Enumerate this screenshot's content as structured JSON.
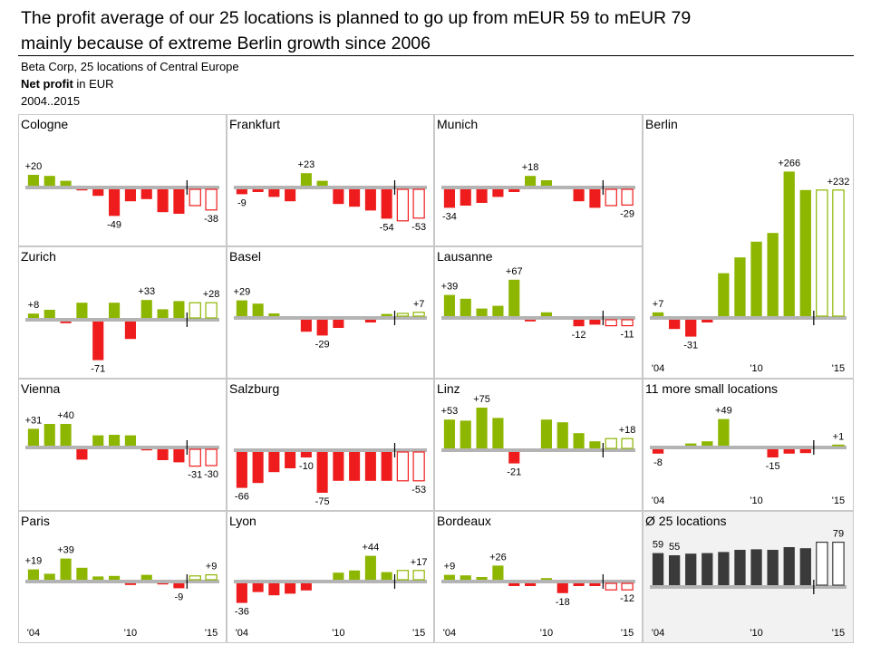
{
  "header": {
    "title_line1": "The profit average of our 25 locations is planned to go up from mEUR 59 to mEUR 79",
    "title_line2": "mainly because of extreme Berlin growth since 2006",
    "subtitle_org": "Beta Corp, 25 locations of Central Europe",
    "subtitle_measure_bold": "Net profit",
    "subtitle_measure_rest": " in EUR",
    "subtitle_period": "2004..2015"
  },
  "colors": {
    "positive": "#8db600",
    "negative": "#ee1c1c",
    "average": "#3a3a3a",
    "axis": "#b4b4b4",
    "panel_border": "#c8c8c8",
    "average_bg": "#f2f2f2"
  },
  "x_tick_labels": [
    "'04",
    "'10",
    "'15"
  ],
  "chart_data": [
    {
      "type": "bar",
      "title": "Cologne",
      "categories": [
        "2004",
        "2005",
        "2006",
        "2007",
        "2008",
        "2009",
        "2010",
        "2011",
        "2012",
        "2013",
        "2014",
        "2015"
      ],
      "values": [
        20,
        18,
        9,
        -2,
        -12,
        -49,
        -22,
        -18,
        -42,
        -45,
        -30,
        -38
      ],
      "planned_from_index": 10,
      "labels": [
        {
          "i": 0,
          "text": "+20"
        },
        {
          "i": 5,
          "text": "-49"
        },
        {
          "i": 11,
          "text": "-38"
        }
      ]
    },
    {
      "type": "bar",
      "title": "Frankfurt",
      "categories": [
        "2004",
        "2005",
        "2006",
        "2007",
        "2008",
        "2009",
        "2010",
        "2011",
        "2012",
        "2013",
        "2014",
        "2015"
      ],
      "values": [
        -9,
        -5,
        -14,
        -22,
        23,
        9,
        -27,
        -32,
        -39,
        -54,
        -58,
        -53
      ],
      "planned_from_index": 10,
      "labels": [
        {
          "i": 0,
          "text": "-9"
        },
        {
          "i": 4,
          "text": "+23"
        },
        {
          "i": 9,
          "text": "-54"
        },
        {
          "i": 11,
          "text": "-53"
        }
      ]
    },
    {
      "type": "bar",
      "title": "Munich",
      "categories": [
        "2004",
        "2005",
        "2006",
        "2007",
        "2008",
        "2009",
        "2010",
        "2011",
        "2012",
        "2013",
        "2014",
        "2015"
      ],
      "values": [
        -34,
        -30,
        -25,
        -14,
        -5,
        18,
        10,
        0,
        -22,
        -34,
        -30,
        -29
      ],
      "planned_from_index": 10,
      "labels": [
        {
          "i": 0,
          "text": "-34"
        },
        {
          "i": 5,
          "text": "+18"
        },
        {
          "i": 11,
          "text": "-29"
        }
      ]
    },
    {
      "type": "bar",
      "title": "Zurich",
      "categories": [
        "2004",
        "2005",
        "2006",
        "2007",
        "2008",
        "2009",
        "2010",
        "2011",
        "2012",
        "2013",
        "2014",
        "2015"
      ],
      "values": [
        8,
        15,
        -3,
        28,
        -71,
        28,
        -32,
        33,
        16,
        31,
        28,
        28
      ],
      "planned_from_index": 10,
      "labels": [
        {
          "i": 0,
          "text": "+8"
        },
        {
          "i": 4,
          "text": "-71"
        },
        {
          "i": 7,
          "text": "+33"
        },
        {
          "i": 11,
          "text": "+28"
        }
      ]
    },
    {
      "type": "bar",
      "title": "Basel",
      "categories": [
        "2004",
        "2005",
        "2006",
        "2007",
        "2008",
        "2009",
        "2010",
        "2011",
        "2012",
        "2013",
        "2014",
        "2015"
      ],
      "values": [
        29,
        23,
        5,
        0,
        -22,
        -29,
        -15,
        0,
        -5,
        4,
        5,
        7
      ],
      "planned_from_index": 10,
      "labels": [
        {
          "i": 0,
          "text": "+29"
        },
        {
          "i": 5,
          "text": "-29"
        },
        {
          "i": 11,
          "text": "+7"
        }
      ]
    },
    {
      "type": "bar",
      "title": "Lausanne",
      "categories": [
        "2004",
        "2005",
        "2006",
        "2007",
        "2008",
        "2009",
        "2010",
        "2011",
        "2012",
        "2013",
        "2014",
        "2015"
      ],
      "values": [
        39,
        32,
        14,
        19,
        67,
        -3,
        7,
        0,
        -12,
        -9,
        -11,
        -11
      ],
      "planned_from_index": 10,
      "labels": [
        {
          "i": 0,
          "text": "+39"
        },
        {
          "i": 4,
          "text": "+67"
        },
        {
          "i": 8,
          "text": "-12"
        },
        {
          "i": 11,
          "text": "-11"
        }
      ]
    },
    {
      "type": "bar",
      "title": "Berlin",
      "categories": [
        "2004",
        "2005",
        "2006",
        "2007",
        "2008",
        "2009",
        "2010",
        "2011",
        "2012",
        "2013",
        "2014",
        "2015"
      ],
      "values": [
        7,
        -17,
        -31,
        -5,
        79,
        108,
        137,
        153,
        266,
        232,
        232,
        232
      ],
      "planned_from_index": 10,
      "labels": [
        {
          "i": 0,
          "text": "+7"
        },
        {
          "i": 2,
          "text": "-31"
        },
        {
          "i": 8,
          "text": "+266"
        },
        {
          "i": 11,
          "text": "+232"
        }
      ]
    },
    {
      "type": "bar",
      "title": "Vienna",
      "categories": [
        "2004",
        "2005",
        "2006",
        "2007",
        "2008",
        "2009",
        "2010",
        "2011",
        "2012",
        "2013",
        "2014",
        "2015"
      ],
      "values": [
        31,
        40,
        40,
        -19,
        19,
        20,
        19,
        -2,
        -20,
        -24,
        -31,
        -30
      ],
      "planned_from_index": 10,
      "labels": [
        {
          "i": 0,
          "text": "+31"
        },
        {
          "i": 2,
          "text": "+40"
        },
        {
          "i": 10,
          "text": "-31"
        },
        {
          "i": 11,
          "text": "-30"
        }
      ]
    },
    {
      "type": "bar",
      "title": "Salzburg",
      "categories": [
        "2004",
        "2005",
        "2006",
        "2007",
        "2008",
        "2009",
        "2010",
        "2011",
        "2012",
        "2013",
        "2014",
        "2015"
      ],
      "values": [
        -66,
        -57,
        -37,
        -30,
        -10,
        -75,
        -53,
        -53,
        -53,
        -53,
        -53,
        -53
      ],
      "planned_from_index": 10,
      "labels": [
        {
          "i": 0,
          "text": "-66"
        },
        {
          "i": 4,
          "text": "-10"
        },
        {
          "i": 5,
          "text": "-75"
        },
        {
          "i": 11,
          "text": "-53"
        }
      ]
    },
    {
      "type": "bar",
      "title": "Linz",
      "categories": [
        "2004",
        "2005",
        "2006",
        "2007",
        "2008",
        "2009",
        "2010",
        "2011",
        "2012",
        "2013",
        "2014",
        "2015"
      ],
      "values": [
        53,
        51,
        75,
        56,
        -21,
        0,
        53,
        48,
        28,
        13,
        18,
        18
      ],
      "planned_from_index": 10,
      "labels": [
        {
          "i": 0,
          "text": "+53"
        },
        {
          "i": 2,
          "text": "+75"
        },
        {
          "i": 4,
          "text": "-21"
        },
        {
          "i": 11,
          "text": "+18"
        }
      ]
    },
    {
      "type": "bar",
      "title": "11 more small locations",
      "categories": [
        "2004",
        "2005",
        "2006",
        "2007",
        "2008",
        "2009",
        "2010",
        "2011",
        "2012",
        "2013",
        "2014",
        "2015"
      ],
      "values": [
        -8,
        0,
        4,
        8,
        49,
        0,
        0,
        -15,
        -8,
        -7,
        0,
        1
      ],
      "planned_from_index": 10,
      "labels": [
        {
          "i": 0,
          "text": "-8"
        },
        {
          "i": 4,
          "text": "+49"
        },
        {
          "i": 7,
          "text": "-15"
        },
        {
          "i": 11,
          "text": "+1"
        }
      ],
      "show_x_ticks": true
    },
    {
      "type": "bar",
      "title": "Paris",
      "categories": [
        "2004",
        "2005",
        "2006",
        "2007",
        "2008",
        "2009",
        "2010",
        "2011",
        "2012",
        "2013",
        "2014",
        "2015"
      ],
      "values": [
        19,
        11,
        39,
        22,
        6,
        7,
        -3,
        9,
        -2,
        -9,
        7,
        9
      ],
      "planned_from_index": 10,
      "labels": [
        {
          "i": 0,
          "text": "+19"
        },
        {
          "i": 2,
          "text": "+39"
        },
        {
          "i": 9,
          "text": "-9"
        },
        {
          "i": 11,
          "text": "+9"
        }
      ],
      "show_x_ticks": true
    },
    {
      "type": "bar",
      "title": "Lyon",
      "categories": [
        "2004",
        "2005",
        "2006",
        "2007",
        "2008",
        "2009",
        "2010",
        "2011",
        "2012",
        "2013",
        "2014",
        "2015"
      ],
      "values": [
        -36,
        -16,
        -22,
        -19,
        -13,
        0,
        13,
        17,
        44,
        14,
        17,
        17
      ],
      "planned_from_index": 10,
      "labels": [
        {
          "i": 0,
          "text": "-36"
        },
        {
          "i": 8,
          "text": "+44"
        },
        {
          "i": 11,
          "text": "+17"
        }
      ],
      "show_x_ticks": true
    },
    {
      "type": "bar",
      "title": "Bordeaux",
      "categories": [
        "2004",
        "2005",
        "2006",
        "2007",
        "2008",
        "2009",
        "2010",
        "2011",
        "2012",
        "2013",
        "2014",
        "2015"
      ],
      "values": [
        9,
        8,
        5,
        26,
        -5,
        -5,
        3,
        -18,
        -5,
        -5,
        -12,
        -12
      ],
      "planned_from_index": 10,
      "labels": [
        {
          "i": 0,
          "text": "+9"
        },
        {
          "i": 3,
          "text": "+26"
        },
        {
          "i": 7,
          "text": "-18"
        },
        {
          "i": 11,
          "text": "-12"
        }
      ],
      "show_x_ticks": true
    },
    {
      "type": "bar",
      "title": "Ø 25 locations",
      "categories": [
        "2004",
        "2005",
        "2006",
        "2007",
        "2008",
        "2009",
        "2010",
        "2011",
        "2012",
        "2013",
        "2014",
        "2015"
      ],
      "values": [
        59,
        55,
        58,
        59,
        61,
        65,
        66,
        65,
        70,
        68,
        79,
        79
      ],
      "planned_from_index": 10,
      "labels": [
        {
          "i": 0,
          "text": "59"
        },
        {
          "i": 1,
          "text": "55"
        },
        {
          "i": 11,
          "text": "79"
        }
      ],
      "show_x_ticks": true,
      "average": true
    }
  ]
}
